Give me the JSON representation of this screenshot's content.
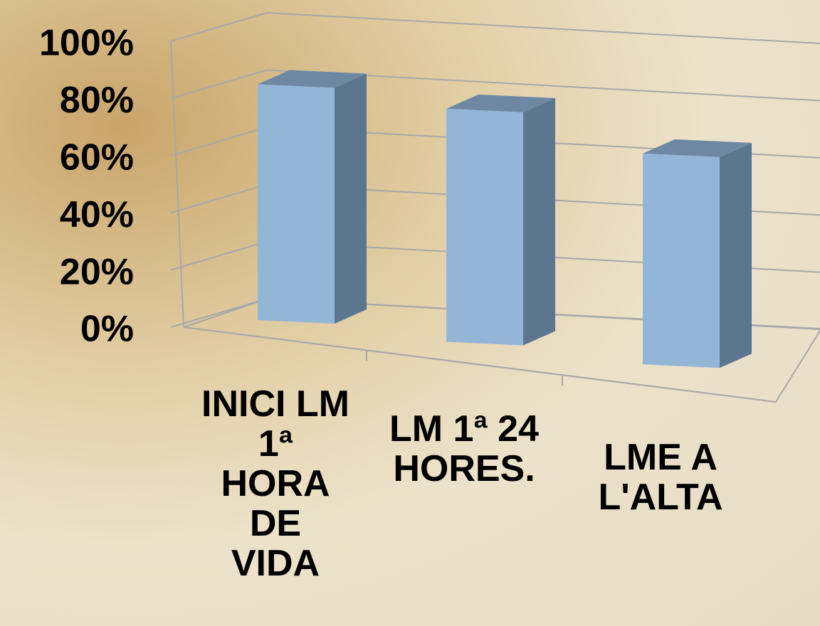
{
  "chart_data": {
    "type": "bar3d",
    "categories": [
      "INICI LM 1ª HORA DE VIDA",
      "LM 1ª 24 HORES.",
      "LME A L'ALTA"
    ],
    "values": [
      85,
      84,
      76
    ],
    "color": "#94b6d6",
    "ylim": [
      0,
      100
    ],
    "yticks": [
      {
        "value": 0,
        "label": "0%"
      },
      {
        "value": 20,
        "label": "20%"
      },
      {
        "value": 40,
        "label": "40%"
      },
      {
        "value": 60,
        "label": "60%"
      },
      {
        "value": 80,
        "label": "80%"
      },
      {
        "value": 100,
        "label": "100%"
      }
    ],
    "grid": true
  }
}
